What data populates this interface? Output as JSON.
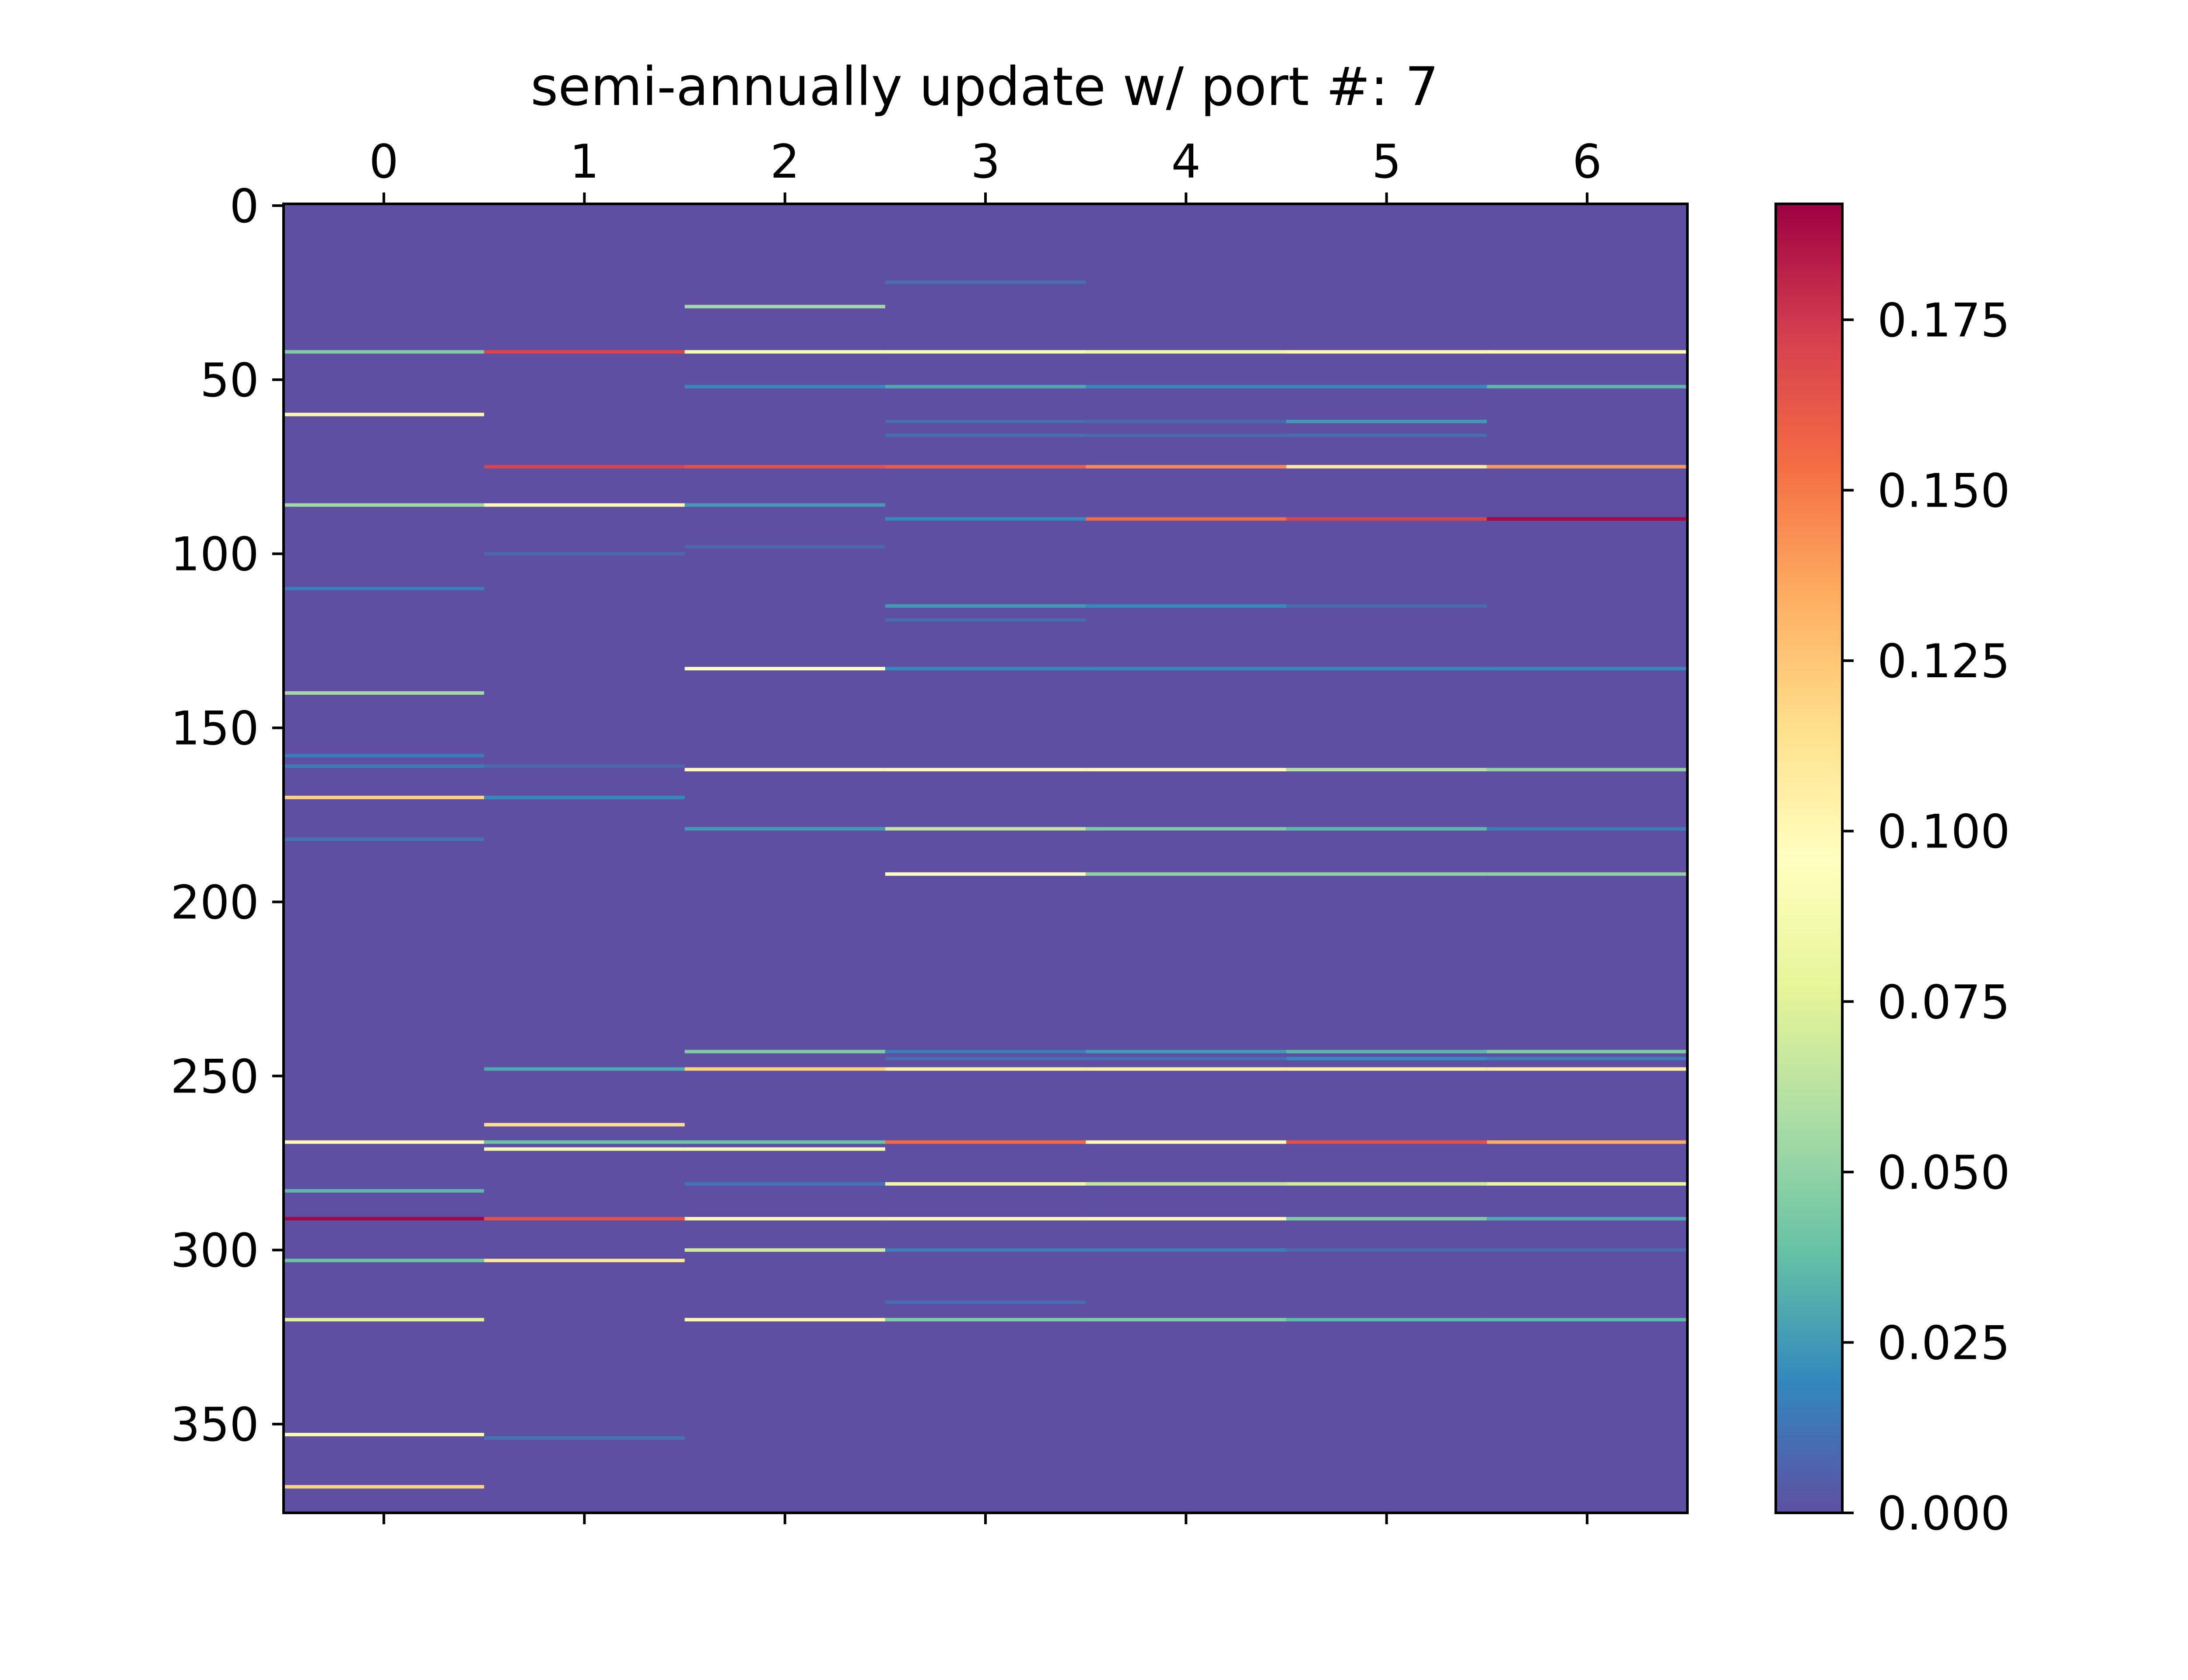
{
  "chart_data": {
    "type": "heatmap",
    "title": "semi-annually update w/ port #: 7",
    "xlabel": "",
    "ylabel": "",
    "colormap": "Spectral_r",
    "n_rows": 376,
    "n_cols": 7,
    "background_value": 0.0,
    "x_ticks": [
      "0",
      "1",
      "2",
      "3",
      "4",
      "5",
      "6"
    ],
    "y_ticks": [
      "0",
      "50",
      "100",
      "150",
      "200",
      "250",
      "300",
      "350"
    ],
    "y_tick_values": [
      0,
      50,
      100,
      150,
      200,
      250,
      300,
      350
    ],
    "colorbar": {
      "min": 0.0,
      "max": 0.192,
      "ticks": [
        "0.000",
        "0.025",
        "0.050",
        "0.075",
        "0.100",
        "0.125",
        "0.150",
        "0.175"
      ],
      "tick_values": [
        0.0,
        0.025,
        0.05,
        0.075,
        0.1,
        0.125,
        0.15,
        0.175
      ]
    },
    "x_axis_position": "top",
    "grid": false,
    "cells": [
      [
        0,
        42,
        0.045
      ],
      [
        1,
        42,
        0.17
      ],
      [
        2,
        42,
        0.09
      ],
      [
        3,
        42,
        0.09
      ],
      [
        4,
        42,
        0.085
      ],
      [
        5,
        42,
        0.1
      ],
      [
        6,
        42,
        0.1
      ],
      [
        2,
        29,
        0.055
      ],
      [
        3,
        22,
        0.01
      ],
      [
        0,
        60,
        0.1
      ],
      [
        2,
        52,
        0.02
      ],
      [
        3,
        52,
        0.03
      ],
      [
        4,
        52,
        0.02
      ],
      [
        5,
        52,
        0.02
      ],
      [
        6,
        52,
        0.035
      ],
      [
        3,
        62,
        0.01
      ],
      [
        4,
        62,
        0.008
      ],
      [
        5,
        62,
        0.025
      ],
      [
        3,
        66,
        0.01
      ],
      [
        4,
        66,
        0.008
      ],
      [
        5,
        66,
        0.01
      ],
      [
        1,
        75,
        0.17
      ],
      [
        2,
        75,
        0.165
      ],
      [
        3,
        75,
        0.16
      ],
      [
        4,
        75,
        0.145
      ],
      [
        5,
        75,
        0.11
      ],
      [
        6,
        75,
        0.14
      ],
      [
        0,
        86,
        0.055
      ],
      [
        1,
        86,
        0.1
      ],
      [
        2,
        86,
        0.025
      ],
      [
        3,
        90,
        0.02
      ],
      [
        4,
        90,
        0.155
      ],
      [
        5,
        90,
        0.17
      ],
      [
        6,
        90,
        0.19
      ],
      [
        1,
        100,
        0.008
      ],
      [
        2,
        98,
        0.008
      ],
      [
        0,
        110,
        0.015
      ],
      [
        3,
        115,
        0.025
      ],
      [
        4,
        115,
        0.02
      ],
      [
        5,
        115,
        0.01
      ],
      [
        3,
        119,
        0.01
      ],
      [
        2,
        133,
        0.095
      ],
      [
        3,
        133,
        0.02
      ],
      [
        4,
        133,
        0.02
      ],
      [
        5,
        133,
        0.02
      ],
      [
        6,
        133,
        0.02
      ],
      [
        0,
        140,
        0.055
      ],
      [
        0,
        158,
        0.015
      ],
      [
        0,
        161,
        0.015
      ],
      [
        1,
        161,
        0.008
      ],
      [
        2,
        162,
        0.1
      ],
      [
        3,
        162,
        0.1
      ],
      [
        4,
        162,
        0.1
      ],
      [
        5,
        162,
        0.06
      ],
      [
        6,
        162,
        0.05
      ],
      [
        0,
        170,
        0.12
      ],
      [
        1,
        170,
        0.02
      ],
      [
        2,
        179,
        0.025
      ],
      [
        3,
        179,
        0.065
      ],
      [
        4,
        179,
        0.045
      ],
      [
        5,
        179,
        0.035
      ],
      [
        6,
        179,
        0.015
      ],
      [
        0,
        182,
        0.012
      ],
      [
        3,
        192,
        0.095
      ],
      [
        4,
        192,
        0.05
      ],
      [
        5,
        192,
        0.05
      ],
      [
        6,
        192,
        0.05
      ],
      [
        2,
        243,
        0.045
      ],
      [
        3,
        243,
        0.015
      ],
      [
        4,
        243,
        0.025
      ],
      [
        5,
        243,
        0.035
      ],
      [
        6,
        243,
        0.045
      ],
      [
        3,
        245,
        0.01
      ],
      [
        4,
        245,
        0.01
      ],
      [
        5,
        245,
        0.02
      ],
      [
        6,
        245,
        0.015
      ],
      [
        1,
        248,
        0.03
      ],
      [
        2,
        248,
        0.12
      ],
      [
        3,
        248,
        0.105
      ],
      [
        4,
        248,
        0.105
      ],
      [
        5,
        248,
        0.105
      ],
      [
        6,
        248,
        0.105
      ],
      [
        1,
        264,
        0.115
      ],
      [
        0,
        269,
        0.1
      ],
      [
        1,
        269,
        0.04
      ],
      [
        2,
        269,
        0.04
      ],
      [
        3,
        269,
        0.155
      ],
      [
        4,
        269,
        0.1
      ],
      [
        5,
        269,
        0.165
      ],
      [
        6,
        269,
        0.135
      ],
      [
        1,
        271,
        0.09
      ],
      [
        2,
        271,
        0.09
      ],
      [
        2,
        281,
        0.012
      ],
      [
        3,
        281,
        0.085
      ],
      [
        4,
        281,
        0.065
      ],
      [
        5,
        281,
        0.07
      ],
      [
        6,
        281,
        0.08
      ],
      [
        0,
        283,
        0.035
      ],
      [
        0,
        291,
        0.19
      ],
      [
        1,
        291,
        0.165
      ],
      [
        2,
        291,
        0.1
      ],
      [
        3,
        291,
        0.1
      ],
      [
        4,
        291,
        0.1
      ],
      [
        5,
        291,
        0.045
      ],
      [
        6,
        291,
        0.03
      ],
      [
        2,
        300,
        0.07
      ],
      [
        3,
        300,
        0.015
      ],
      [
        4,
        300,
        0.015
      ],
      [
        5,
        300,
        0.01
      ],
      [
        6,
        300,
        0.01
      ],
      [
        0,
        303,
        0.04
      ],
      [
        1,
        303,
        0.11
      ],
      [
        3,
        315,
        0.01
      ],
      [
        0,
        320,
        0.075
      ],
      [
        2,
        320,
        0.1
      ],
      [
        3,
        320,
        0.045
      ],
      [
        4,
        320,
        0.045
      ],
      [
        5,
        320,
        0.035
      ],
      [
        6,
        320,
        0.035
      ],
      [
        0,
        353,
        0.09
      ],
      [
        1,
        354,
        0.012
      ],
      [
        0,
        368,
        0.12
      ]
    ]
  }
}
